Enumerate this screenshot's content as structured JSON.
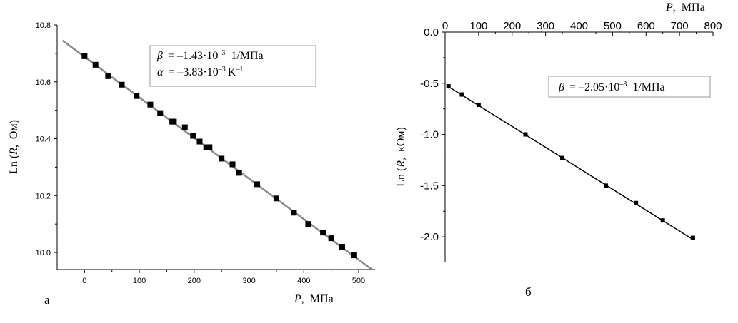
{
  "chart_data": [
    {
      "type": "scatter",
      "panel_label": "а",
      "xlabel_sym": "P",
      "xlabel_unit": "МПа",
      "ylabel_sym": "R",
      "ylabel_unit": "Ом",
      "ylabel_prefix": "Ln (",
      "xlim": [
        -50,
        530
      ],
      "ylim": [
        9.94,
        10.8
      ],
      "x_ticks": [
        0,
        100,
        200,
        300,
        400,
        500
      ],
      "y_ticks": [
        10.0,
        10.2,
        10.4,
        10.6,
        10.8
      ],
      "y_tick_labels": [
        "10.0",
        "10.2",
        "10.4",
        "10.6",
        "10.8"
      ],
      "annotation": {
        "beta_value": "= –1.43·10",
        "beta_exp": "–3",
        "beta_unit": "1/МПа",
        "alpha_value": "= –3.83·10",
        "alpha_exp": "–3",
        "alpha_unit": "K",
        "alpha_unit_exp": "–1"
      },
      "series": [
        {
          "x": [
            0,
            20,
            43,
            68,
            95,
            120,
            138,
            160,
            163,
            183,
            198,
            210,
            222,
            228,
            250,
            270,
            282,
            315,
            350,
            382,
            408,
            435,
            450,
            470,
            492
          ],
          "y": [
            10.69,
            10.66,
            10.62,
            10.59,
            10.55,
            10.52,
            10.49,
            10.46,
            10.46,
            10.44,
            10.41,
            10.39,
            10.37,
            10.37,
            10.33,
            10.31,
            10.28,
            10.24,
            10.19,
            10.14,
            10.1,
            10.07,
            10.05,
            10.02,
            9.99
          ]
        }
      ],
      "fit_line": {
        "x": [
          -40,
          525
        ],
        "y": [
          10.745,
          9.939
        ],
        "color": "#8a8a8a"
      },
      "marker_color": "#000000"
    },
    {
      "type": "scatter",
      "panel_label": "б",
      "xlabel_sym": "P",
      "xlabel_unit": "МПа",
      "ylabel_sym": "R",
      "ylabel_unit": "кОм",
      "ylabel_prefix": "Ln (",
      "xlim": [
        0,
        800
      ],
      "ylim": [
        -2.25,
        0.0
      ],
      "x_ticks": [
        0,
        100,
        200,
        300,
        400,
        500,
        600,
        700,
        800
      ],
      "y_ticks": [
        0.0,
        -0.5,
        -1.0,
        -1.5,
        -2.0
      ],
      "y_tick_labels": [
        "0.0",
        "-0.5",
        "-1.0",
        "-1.5",
        "-2.0"
      ],
      "annotation": {
        "beta_value": "= –2.05·10",
        "beta_exp": "–3",
        "beta_unit": "1/МПа"
      },
      "series": [
        {
          "x": [
            10,
            50,
            100,
            240,
            350,
            480,
            570,
            650,
            740
          ],
          "y": [
            -0.53,
            -0.61,
            -0.71,
            -1.0,
            -1.23,
            -1.5,
            -1.67,
            -1.84,
            -2.01
          ]
        }
      ],
      "fit_line": {
        "x": [
          5,
          742
        ],
        "y": [
          -0.523,
          -2.03
        ],
        "color": "#000000"
      },
      "marker_color": "#000000"
    }
  ]
}
